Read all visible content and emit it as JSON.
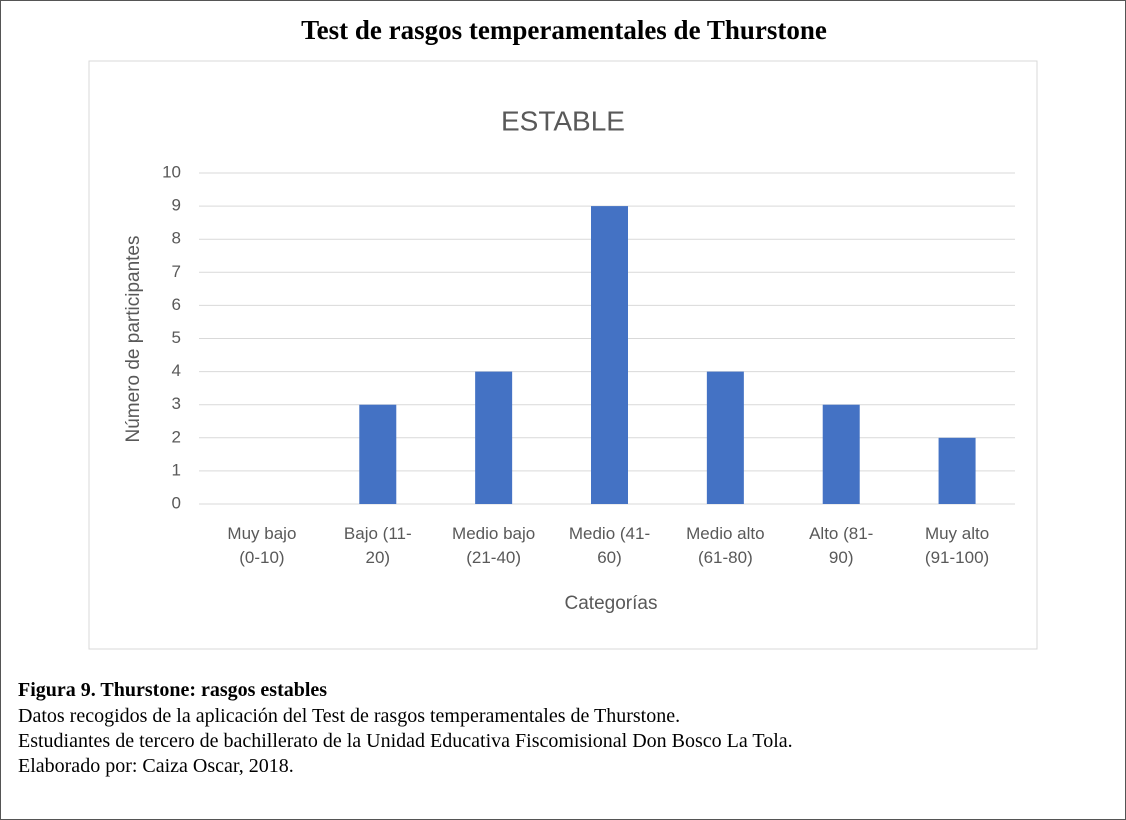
{
  "header": {
    "title": "Test de rasgos temperamentales de Thurstone"
  },
  "chart_data": {
    "type": "bar",
    "title": "ESTABLE",
    "x_label": "Categorías",
    "y_label": "Número de participantes",
    "categories": [
      "Muy bajo (0-10)",
      "Bajo (11-20)",
      "Medio bajo (21-40)",
      "Medio (41-60)",
      "Medio alto (61-80)",
      "Alto (81-90)",
      "Muy alto (91-100)"
    ],
    "values": [
      0,
      3,
      4,
      9,
      4,
      3,
      2
    ],
    "color": "#4472c4",
    "ylim": [
      0,
      10
    ],
    "yticks": [
      0,
      1,
      2,
      3,
      4,
      5,
      6,
      7,
      8,
      9,
      10
    ],
    "grid": true
  },
  "caption": {
    "heading": "Figura 9. Thurstone: rasgos estables",
    "lines": [
      "Datos recogidos de la aplicación del Test de rasgos temperamentales de Thurstone.",
      "Estudiantes de tercero de bachillerato de la Unidad Educativa Fiscomisional Don Bosco La Tola.",
      "Elaborado por: Caiza Oscar, 2018."
    ]
  }
}
